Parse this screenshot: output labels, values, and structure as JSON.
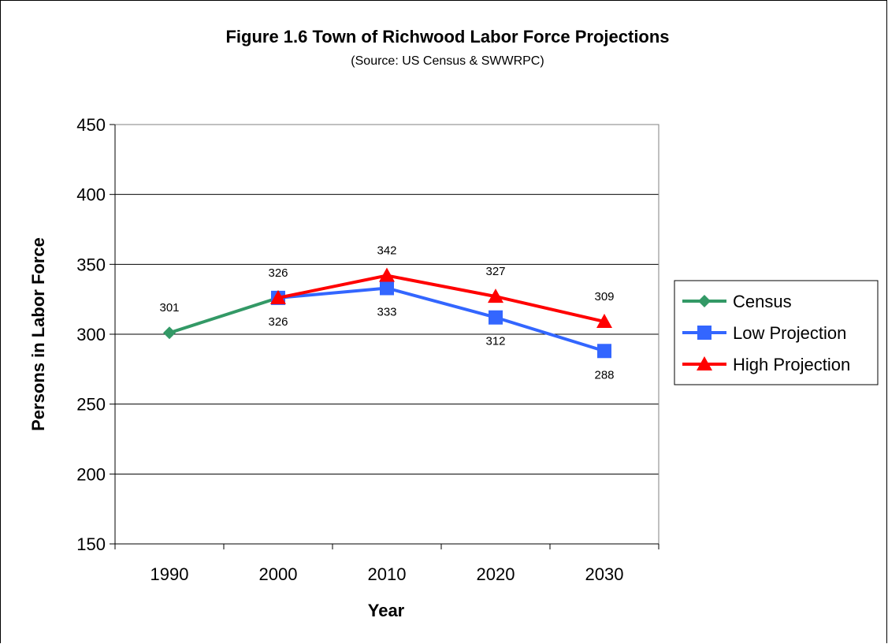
{
  "chart_data": {
    "type": "line",
    "title": "Figure 1.6 Town of Richwood Labor Force Projections",
    "subtitle": "(Source: US Census & SWWRPC)",
    "xlabel": "Year",
    "ylabel": "Persons in Labor Force",
    "categories": [
      "1990",
      "2000",
      "2010",
      "2020",
      "2030"
    ],
    "ylim": [
      150,
      450
    ],
    "yticks": [
      150,
      200,
      250,
      300,
      350,
      400,
      450
    ],
    "grid": "horizontal",
    "legend_position": "right",
    "series": [
      {
        "name": "Census",
        "color": "#339966",
        "marker": "diamond",
        "values": [
          301,
          326,
          null,
          null,
          null
        ],
        "label_position": "above",
        "labels": [
          "301",
          null,
          null,
          null,
          null
        ]
      },
      {
        "name": "Low Projection",
        "color": "#3366FF",
        "marker": "square",
        "values": [
          null,
          326,
          333,
          312,
          288
        ],
        "label_position": "below",
        "labels": [
          null,
          "326",
          "333",
          "312",
          "288"
        ]
      },
      {
        "name": "High Projection",
        "color": "#FF0000",
        "marker": "triangle",
        "values": [
          null,
          326,
          342,
          327,
          309
        ],
        "label_position": "above",
        "labels": [
          null,
          "326",
          "342",
          "327",
          "309"
        ]
      }
    ]
  }
}
